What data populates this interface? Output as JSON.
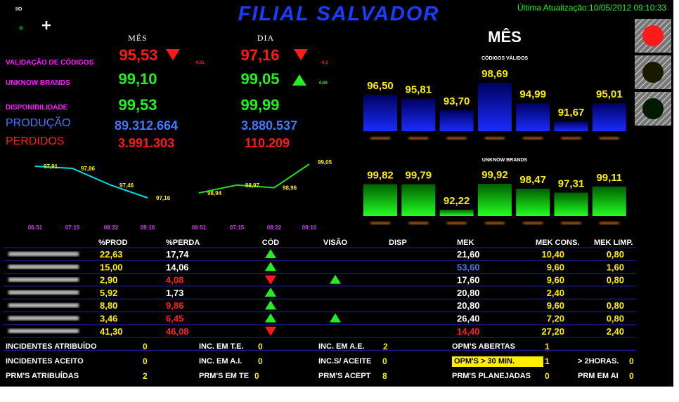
{
  "header": {
    "io": "I/O",
    "title": "FILIAL SALVADOR",
    "last_update": "Última Atualização:10/05/2012 09:10:33"
  },
  "kpis": {
    "col_headers": [
      "MÊS",
      "DIA"
    ],
    "rows": [
      {
        "label": "VALIDAÇÃO DE CÓDIGOS",
        "month": "95,53",
        "month_delta": "-0,01",
        "day": "97,16",
        "day_delta": "-0,3"
      },
      {
        "label": "UNKNOW BRANDS",
        "month": "99,10",
        "day": "99,05",
        "day_delta": "0,09"
      },
      {
        "label": "DISPONIBILIDADE",
        "month": "99,53",
        "day": "99,99"
      },
      {
        "label": "PRODUÇÃO",
        "month": "89.312.664",
        "day": "3.880.537"
      },
      {
        "label": "PERDIDOS",
        "month": "3.991.303",
        "day": "110.209"
      }
    ]
  },
  "bars_title": "MÊS",
  "chart_data": [
    {
      "type": "line",
      "categories": [
        "06:51",
        "07:15",
        "08:22",
        "09:10"
      ],
      "values": [
        97.91,
        97.86,
        97.46,
        97.16
      ],
      "value_labels": [
        "97,91",
        "97,86",
        "97,46",
        "97,16"
      ],
      "color": "#00dde8"
    },
    {
      "type": "line",
      "categories": [
        "06:51",
        "07:15",
        "08:22",
        "09:10"
      ],
      "values": [
        98.94,
        98.97,
        98.96,
        99.05
      ],
      "value_labels": [
        "98,94",
        "98,97",
        "98,96",
        "99,05"
      ],
      "color": "#22dd22"
    },
    {
      "type": "bar",
      "title": "CÓDIGOS VÁLIDOS",
      "values": [
        96.5,
        95.81,
        93.7,
        98.69,
        94.99,
        91.67,
        95.01
      ],
      "value_labels": [
        "96,50",
        "95,81",
        "93,70",
        "98,69",
        "94,99",
        "91,67",
        "95,01"
      ],
      "color": "#1020ff"
    },
    {
      "type": "bar",
      "title": "UNKNOW BRANDS",
      "values": [
        99.82,
        99.79,
        92.22,
        99.92,
        98.47,
        97.31,
        99.11
      ],
      "value_labels": [
        "99,82",
        "99,79",
        "92,22",
        "99,92",
        "98,47",
        "97,31",
        "99,11"
      ],
      "color": "#18e818"
    }
  ],
  "table": {
    "columns": [
      "%PROD",
      "%PERDA",
      "CÓD",
      "VISÃO",
      "DISP",
      "MEK",
      "MEK CONS.",
      "MEK LIMP."
    ],
    "rows": [
      [
        "22,63",
        "17,74",
        "21,60",
        "10,40",
        "0,80"
      ],
      [
        "15,00",
        "14,06",
        "53,60",
        "9,60",
        "1,60"
      ],
      [
        "2,90",
        "4,08",
        "17,60",
        "9,60",
        "0,80"
      ],
      [
        "5,92",
        "1,73",
        "20,80",
        "2,40",
        null
      ],
      [
        "8,80",
        "9,86",
        "20,80",
        "9,60",
        "0,80"
      ],
      [
        "3,46",
        "6,45",
        "26,40",
        "7,20",
        "0,80"
      ],
      [
        "41,30",
        "46,08",
        "14,40",
        "27,20",
        "2,40"
      ]
    ]
  },
  "bottom": {
    "rows": [
      [
        {
          "label": "INCIDENTES ATRIBUÍDO",
          "value": "0"
        },
        {
          "label": "INC. EM T.E.",
          "value": "0"
        },
        {
          "label": "INC. EM A.E.",
          "value": "2"
        },
        {
          "label": "OPM'S ABERTAS",
          "value": "1"
        }
      ],
      [
        {
          "label": "INCIDENTES ACEITO",
          "value": "0"
        },
        {
          "label": "INC. EM A.I.",
          "value": "0"
        },
        {
          "label": "INC.S/ ACEITE",
          "value": "0"
        },
        {
          "label": "OPM'S > 30 MIN.",
          "value": "1"
        },
        {
          "label": "> 2HORAS.",
          "value": "0"
        }
      ],
      [
        {
          "label": "PRM'S ATRIBUÍDAS",
          "value": "2"
        },
        {
          "label": "PRM'S EM TE",
          "value": "0"
        },
        {
          "label": "PRM'S ACEPT",
          "value": "8"
        },
        {
          "label": "PRM'S PLANEJADAS",
          "value": "0"
        },
        {
          "label": "PRM EM AI",
          "value": "0"
        }
      ]
    ]
  }
}
